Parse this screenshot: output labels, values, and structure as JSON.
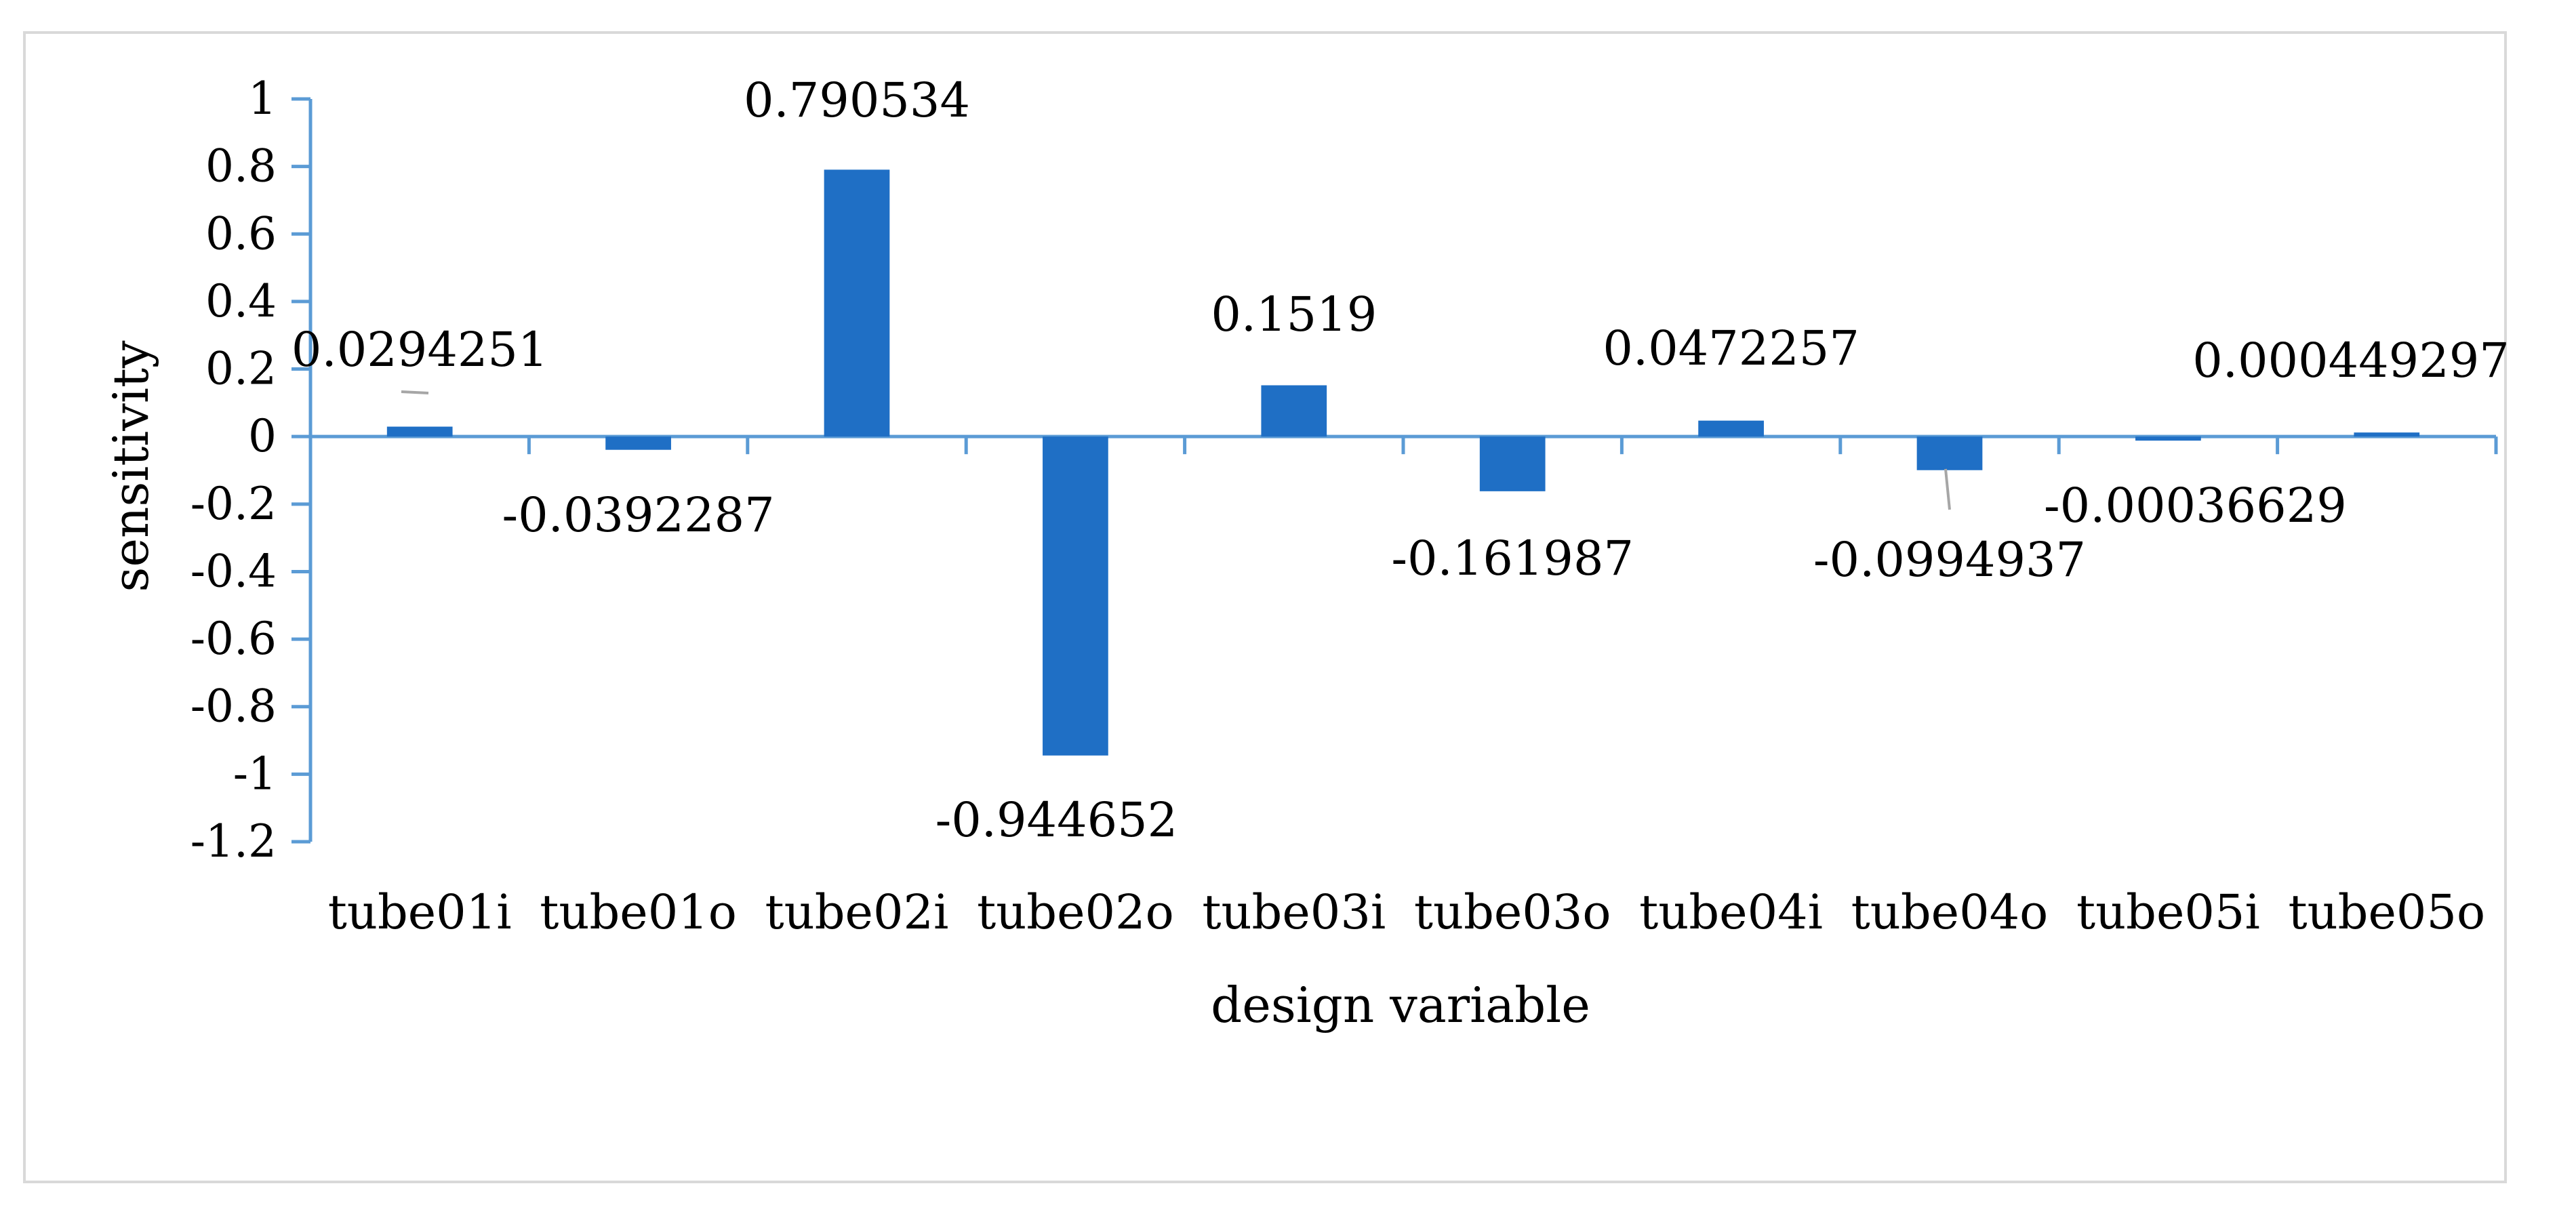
{
  "chart_data": {
    "type": "bar",
    "title": "",
    "xlabel": "design variable",
    "ylabel": "sensitivity",
    "ylim": [
      -1.2,
      1
    ],
    "yticks": [
      1,
      0.8,
      0.6,
      0.4,
      0.2,
      0,
      -0.2,
      -0.4,
      -0.6,
      -0.8,
      -1,
      -1.2
    ],
    "ytick_labels": [
      "1",
      "0.8",
      "0.6",
      "0.4",
      "0.2",
      "0",
      "-0.2",
      "-0.4",
      "-0.6",
      "-0.8",
      "-1",
      "-1.2"
    ],
    "categories": [
      "tube01i",
      "tube01o",
      "tube02i",
      "tube02o",
      "tube03i",
      "tube03o",
      "tube04i",
      "tube04o",
      "tube05i",
      "tube05o"
    ],
    "values": [
      0.0294251,
      -0.0392287,
      0.790534,
      -0.944652,
      0.1519,
      -0.161987,
      0.0472257,
      -0.0994937,
      -0.00036629,
      0.000449297
    ],
    "value_labels": [
      "0.0294251",
      "-0.0392287",
      "0.790534",
      "-0.944652",
      "0.1519",
      "-0.161987",
      "0.0472257",
      "-0.0994937",
      "-0.00036629",
      "0.000449297"
    ],
    "bar_color": "#1f6fc5",
    "axis_color": "#5b9bd5",
    "grid": false,
    "legend": "none"
  }
}
